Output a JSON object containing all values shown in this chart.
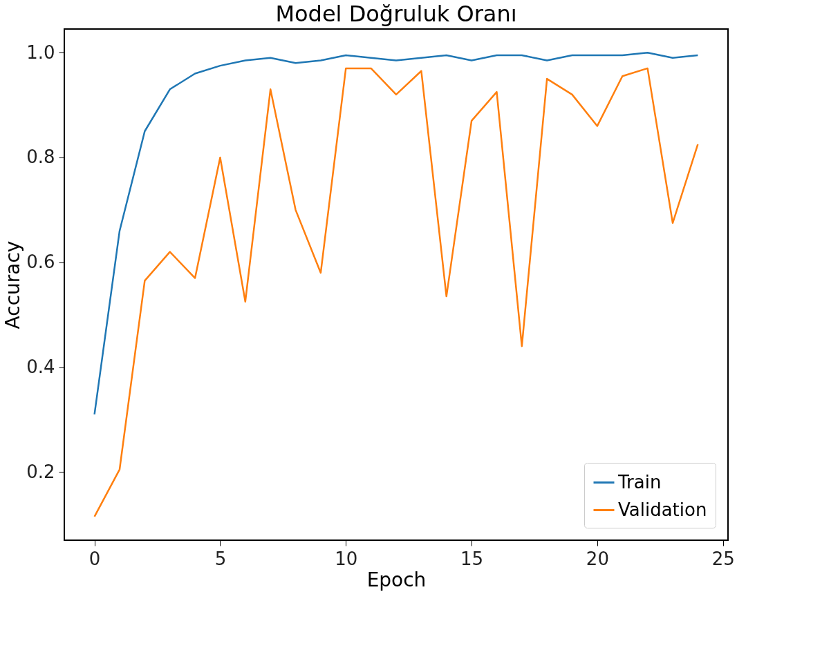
{
  "chart_data": {
    "type": "line",
    "title": "Model Doğruluk Oranı",
    "xlabel": "Epoch",
    "ylabel": "Accuracy",
    "x": [
      0,
      1,
      2,
      3,
      4,
      5,
      6,
      7,
      8,
      9,
      10,
      11,
      12,
      13,
      14,
      15,
      16,
      17,
      18,
      19,
      20,
      21,
      22,
      23,
      24
    ],
    "series": [
      {
        "name": "Train",
        "color": "#1f77b4",
        "values": [
          0.31,
          0.66,
          0.85,
          0.93,
          0.96,
          0.975,
          0.985,
          0.99,
          0.98,
          0.985,
          0.995,
          0.99,
          0.985,
          0.99,
          0.995,
          0.985,
          0.995,
          0.995,
          0.985,
          0.995,
          0.995,
          0.995,
          1.0,
          0.99,
          0.995
        ]
      },
      {
        "name": "Validation",
        "color": "#ff7f0e",
        "values": [
          0.115,
          0.205,
          0.565,
          0.62,
          0.57,
          0.8,
          0.525,
          0.93,
          0.7,
          0.58,
          0.97,
          0.97,
          0.92,
          0.965,
          0.535,
          0.87,
          0.925,
          0.44,
          0.95,
          0.92,
          0.86,
          0.955,
          0.97,
          0.675,
          0.825
        ]
      }
    ],
    "xlim": [
      -1.2,
      25.2
    ],
    "xticks": [
      0,
      5,
      10,
      15,
      20,
      25
    ],
    "ylim": [
      0.07,
      1.045
    ],
    "yticks": [
      0.2,
      0.4,
      0.6,
      0.8,
      {
        "value": 1.0,
        "label": "1.0"
      }
    ],
    "legend": "bottom right",
    "grid": false,
    "marker": "none",
    "line_style": "solid"
  }
}
